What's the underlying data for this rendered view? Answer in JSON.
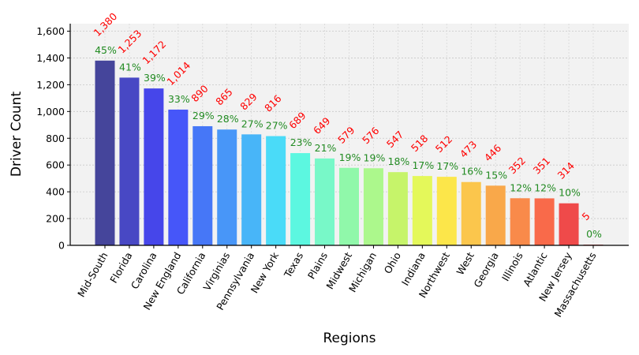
{
  "chart_data": {
    "type": "bar",
    "title": "",
    "xlabel": "Regions",
    "ylabel": "Driver Count",
    "ylim": [
      0,
      1656
    ],
    "yticks": [
      0,
      200,
      400,
      600,
      800,
      1000,
      1200,
      1400,
      1600
    ],
    "ytick_labels": [
      "0",
      "200",
      "400",
      "600",
      "800",
      "1,000",
      "1,200",
      "1,400",
      "1,600"
    ],
    "grid": true,
    "categories": [
      "Mid-South",
      "Florida",
      "Carolina",
      "New England",
      "California",
      "Virginias",
      "Pennsylvania",
      "New York",
      "Texas",
      "Plains",
      "Midwest",
      "Michigan",
      "Ohio",
      "Indiana",
      "Northwest",
      "West",
      "Georgia",
      "Illinois",
      "Atlantic",
      "New Jersey",
      "Massachusetts"
    ],
    "values": [
      1380,
      1253,
      1172,
      1014,
      890,
      865,
      829,
      816,
      689,
      649,
      579,
      576,
      547,
      518,
      512,
      473,
      446,
      352,
      351,
      314,
      5
    ],
    "value_labels": [
      "1,380",
      "1,253",
      "1,172",
      "1,014",
      "890",
      "865",
      "829",
      "816",
      "689",
      "649",
      "579",
      "576",
      "547",
      "518",
      "512",
      "473",
      "446",
      "352",
      "351",
      "314",
      "5"
    ],
    "percent_labels": [
      "45%",
      "41%",
      "39%",
      "33%",
      "29%",
      "28%",
      "27%",
      "27%",
      "23%",
      "21%",
      "19%",
      "19%",
      "18%",
      "17%",
      "17%",
      "16%",
      "15%",
      "12%",
      "12%",
      "10%",
      "0%"
    ],
    "colors": [
      "#45459b",
      "#4848c4",
      "#4646ea",
      "#4656f9",
      "#4677f7",
      "#4896f8",
      "#48b5f8",
      "#4adbf8",
      "#5cf7e0",
      "#78f8c8",
      "#90f8aa",
      "#acf88c",
      "#c6f46a",
      "#e4f85a",
      "#fce64a",
      "#fbc64c",
      "#f9a84a",
      "#f98a4a",
      "#f96a4a",
      "#ef4a4a",
      "#d84040"
    ],
    "value_label_color": "#ff0000",
    "percent_label_color": "#228b22"
  }
}
